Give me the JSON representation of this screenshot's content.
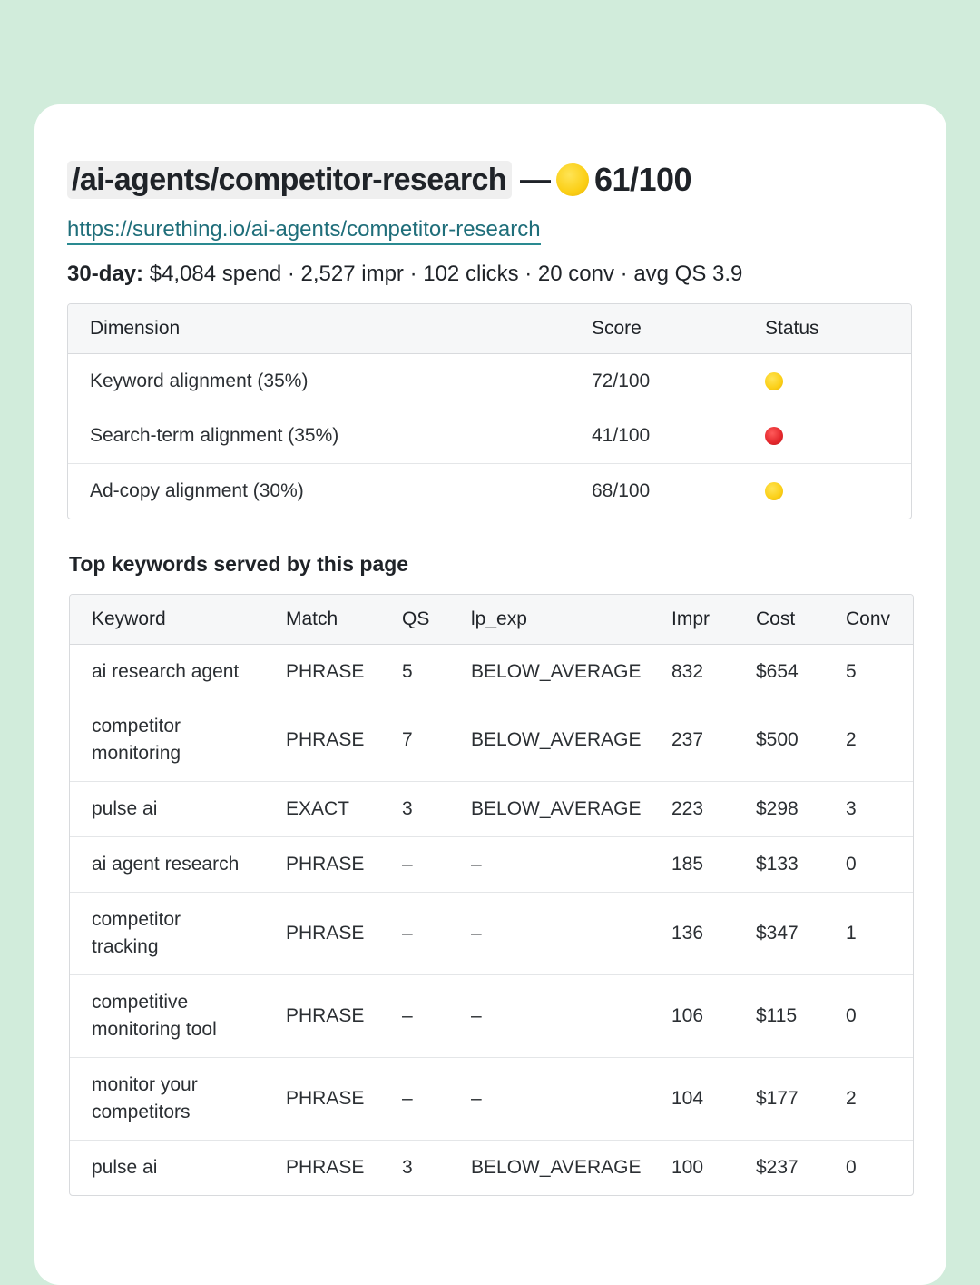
{
  "header": {
    "path": "/ai-agents/competitor-research",
    "separator": "—",
    "score": "61/100",
    "score_color": "#fbcf16",
    "url": "https://surething.io/ai-agents/competitor-research",
    "stats_label": "30-day:",
    "stats_text": "$4,084 spend · 2,527 impr · 102 clicks · 20 conv · avg QS 3.9"
  },
  "dimensions": {
    "columns": [
      "Dimension",
      "Score",
      "Status"
    ],
    "rows": [
      {
        "dimension": "Keyword alignment (35%)",
        "score": "72/100",
        "status": "yellow"
      },
      {
        "dimension": "Search-term alignment (35%)",
        "score": "41/100",
        "status": "red"
      },
      {
        "dimension": "Ad-copy alignment (30%)",
        "score": "68/100",
        "status": "yellow"
      }
    ]
  },
  "keywords": {
    "title": "Top keywords served by this page",
    "columns": [
      "Keyword",
      "Match",
      "QS",
      "lp_exp",
      "Impr",
      "Cost",
      "Conv"
    ],
    "rows": [
      {
        "keyword": "ai research agent",
        "match": "PHRASE",
        "qs": "5",
        "lp_exp": "BELOW_AVERAGE",
        "impr": "832",
        "cost": "$654",
        "conv": "5"
      },
      {
        "keyword": "competitor monitoring",
        "match": "PHRASE",
        "qs": "7",
        "lp_exp": "BELOW_AVERAGE",
        "impr": "237",
        "cost": "$500",
        "conv": "2"
      },
      {
        "keyword": "pulse ai",
        "match": "EXACT",
        "qs": "3",
        "lp_exp": "BELOW_AVERAGE",
        "impr": "223",
        "cost": "$298",
        "conv": "3"
      },
      {
        "keyword": "ai agent research",
        "match": "PHRASE",
        "qs": "–",
        "lp_exp": "–",
        "impr": "185",
        "cost": "$133",
        "conv": "0"
      },
      {
        "keyword": "competitor tracking",
        "match": "PHRASE",
        "qs": "–",
        "lp_exp": "–",
        "impr": "136",
        "cost": "$347",
        "conv": "1"
      },
      {
        "keyword": "competitive monitoring tool",
        "match": "PHRASE",
        "qs": "–",
        "lp_exp": "–",
        "impr": "106",
        "cost": "$115",
        "conv": "0"
      },
      {
        "keyword": "monitor your competitors",
        "match": "PHRASE",
        "qs": "–",
        "lp_exp": "–",
        "impr": "104",
        "cost": "$177",
        "conv": "2"
      },
      {
        "keyword": "pulse ai",
        "match": "PHRASE",
        "qs": "3",
        "lp_exp": "BELOW_AVERAGE",
        "impr": "100",
        "cost": "$237",
        "conv": "0"
      }
    ]
  }
}
